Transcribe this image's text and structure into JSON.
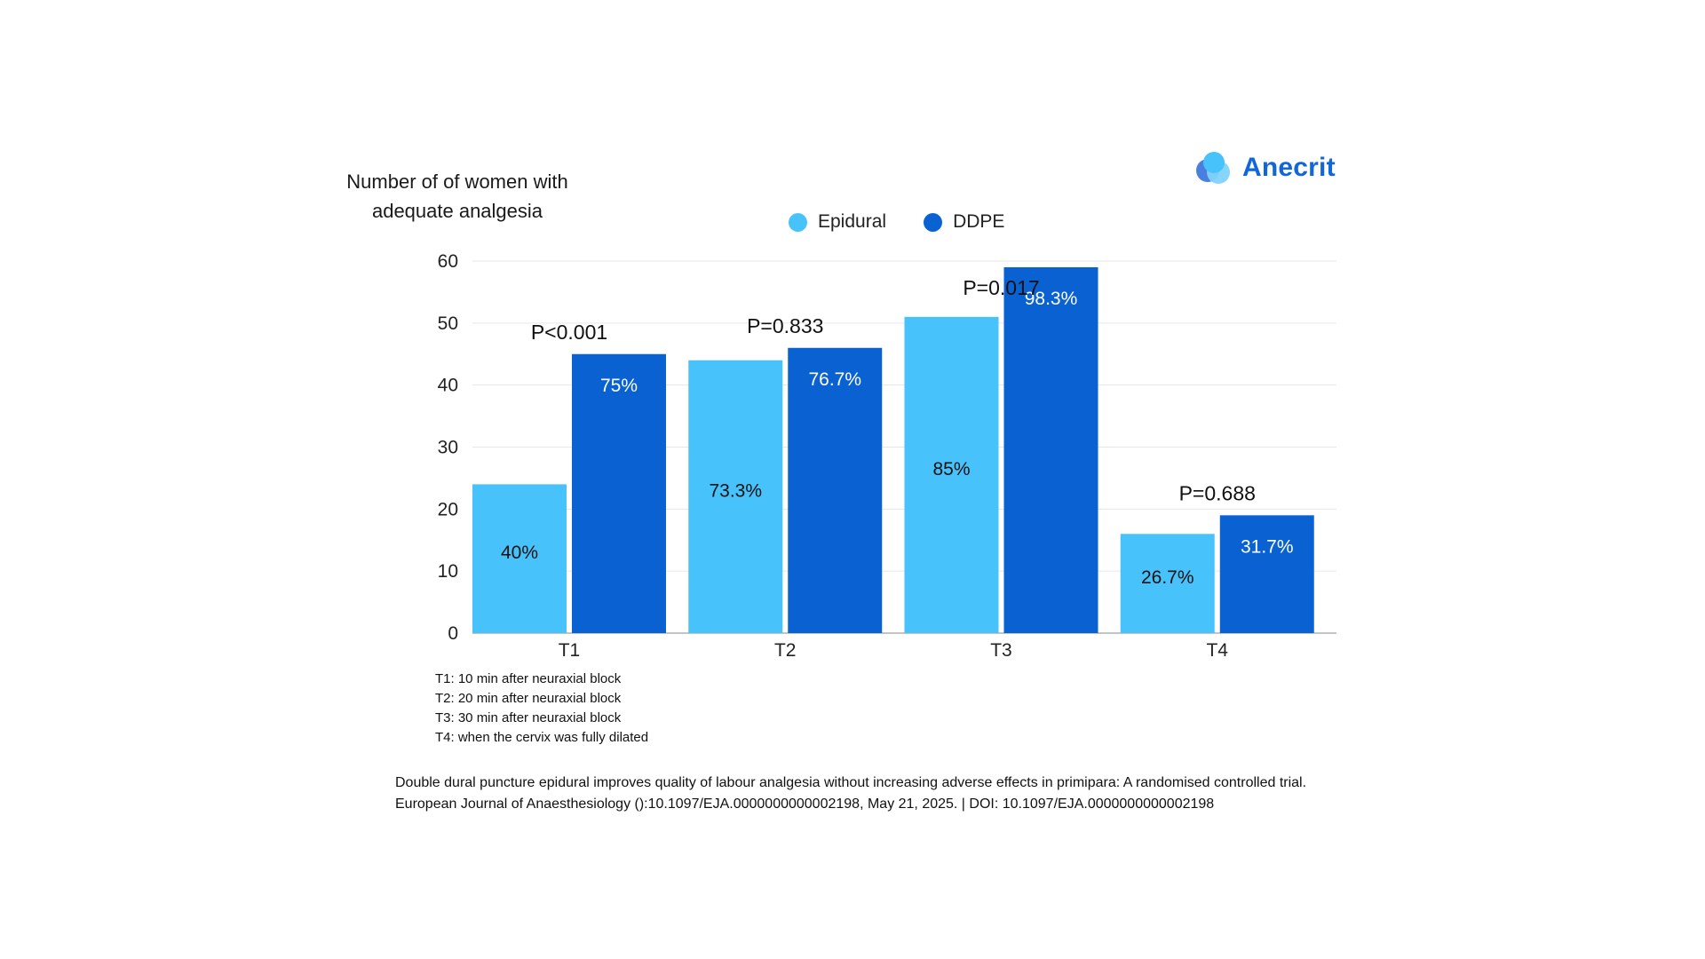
{
  "brand": {
    "name": "Anecrit",
    "icon": "overlapping-circles-logo-icon"
  },
  "colors": {
    "epidural": "#48c2fa",
    "ddpe": "#0a62d2",
    "grid": "#e6e6e6",
    "axis": "#b0b0b0"
  },
  "chart_data": {
    "type": "bar",
    "title": "",
    "ylabel": "Number of of women with adequate analgesia",
    "xlabel": "",
    "categories": [
      "T1",
      "T2",
      "T3",
      "T4"
    ],
    "ylim": [
      0,
      60
    ],
    "yticks": [
      "0",
      "10",
      "20",
      "30",
      "40",
      "50",
      "60"
    ],
    "grid": true,
    "legend_position": "top-center",
    "series": [
      {
        "name": "Epidural",
        "values": [
          24,
          44,
          51,
          16
        ],
        "labels": [
          "40%",
          "73.3%",
          "85%",
          "26.7%"
        ]
      },
      {
        "name": "DDPE",
        "values": [
          45,
          46,
          59,
          19
        ],
        "labels": [
          "75%",
          "76.7%",
          "98.3%",
          "31.7%"
        ]
      }
    ],
    "annotations": [
      "P<0.001",
      "P=0.833",
      "P=0.017",
      "P=0.688"
    ]
  },
  "notes": [
    "T1: 10 min after neuraxial block",
    "T2: 20 min after neuraxial block",
    "T3: 30 min after neuraxial block",
    "T4: when the cervix was fully dilated"
  ],
  "citation": [
    "Double dural puncture epidural improves quality of labour analgesia without increasing adverse effects in primipara: A randomised controlled trial.",
    "European Journal of Anaesthesiology ():10.1097/EJA.0000000000002198, May 21, 2025. | DOI: 10.1097/EJA.0000000000002198"
  ]
}
